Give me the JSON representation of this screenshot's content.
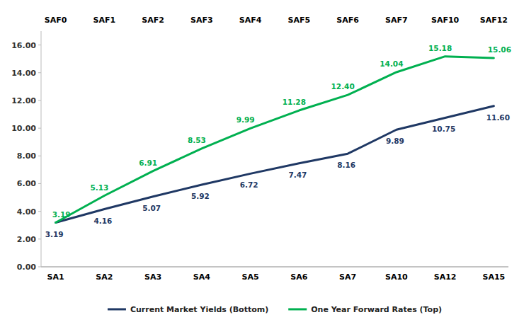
{
  "chart_data": {
    "type": "line",
    "categories": [
      "SA1",
      "SA2",
      "SA3",
      "SA4",
      "SA5",
      "SA6",
      "SA7",
      "SA10",
      "SA12",
      "SA15"
    ],
    "top_categories": [
      "SAF0",
      "SAF1",
      "SAF2",
      "SAF3",
      "SAF4",
      "SAF5",
      "SAF6",
      "SAF7",
      "SAF10",
      "SAF12"
    ],
    "series": [
      {
        "name": "Current Market Yields (Bottom)",
        "color": "#1F3864",
        "values": [
          3.19,
          4.16,
          5.07,
          5.92,
          6.72,
          7.47,
          8.16,
          9.89,
          10.75,
          11.6
        ],
        "value_labels": [
          "3.19",
          "4.16",
          "5.07",
          "5.92",
          "6.72",
          "7.47",
          "8.16",
          "9.89",
          "10.75",
          "11.60"
        ]
      },
      {
        "name": "One Year Forward Rates (Top)",
        "color": "#00B050",
        "values": [
          3.19,
          5.13,
          6.91,
          8.53,
          9.99,
          11.28,
          12.4,
          14.04,
          15.18,
          15.06
        ],
        "value_labels": [
          "3.19",
          "5.13",
          "6.91",
          "8.53",
          "9.99",
          "11.28",
          "12.40",
          "14.04",
          "15.18",
          "15.06"
        ]
      }
    ],
    "ylim": [
      0.0,
      17.0
    ],
    "yticks": [
      {
        "value": 0,
        "label": "0.00"
      },
      {
        "value": 2,
        "label": "2.00"
      },
      {
        "value": 4,
        "label": "4.00"
      },
      {
        "value": 6,
        "label": "6.00"
      },
      {
        "value": 8,
        "label": "8.00"
      },
      {
        "value": 10,
        "label": "10.00"
      },
      {
        "value": 12,
        "label": "12.00"
      },
      {
        "value": 14,
        "label": "14.00"
      },
      {
        "value": 16,
        "label": "16.00"
      }
    ],
    "grid": false,
    "legend": "bottom",
    "data_labels": true
  }
}
